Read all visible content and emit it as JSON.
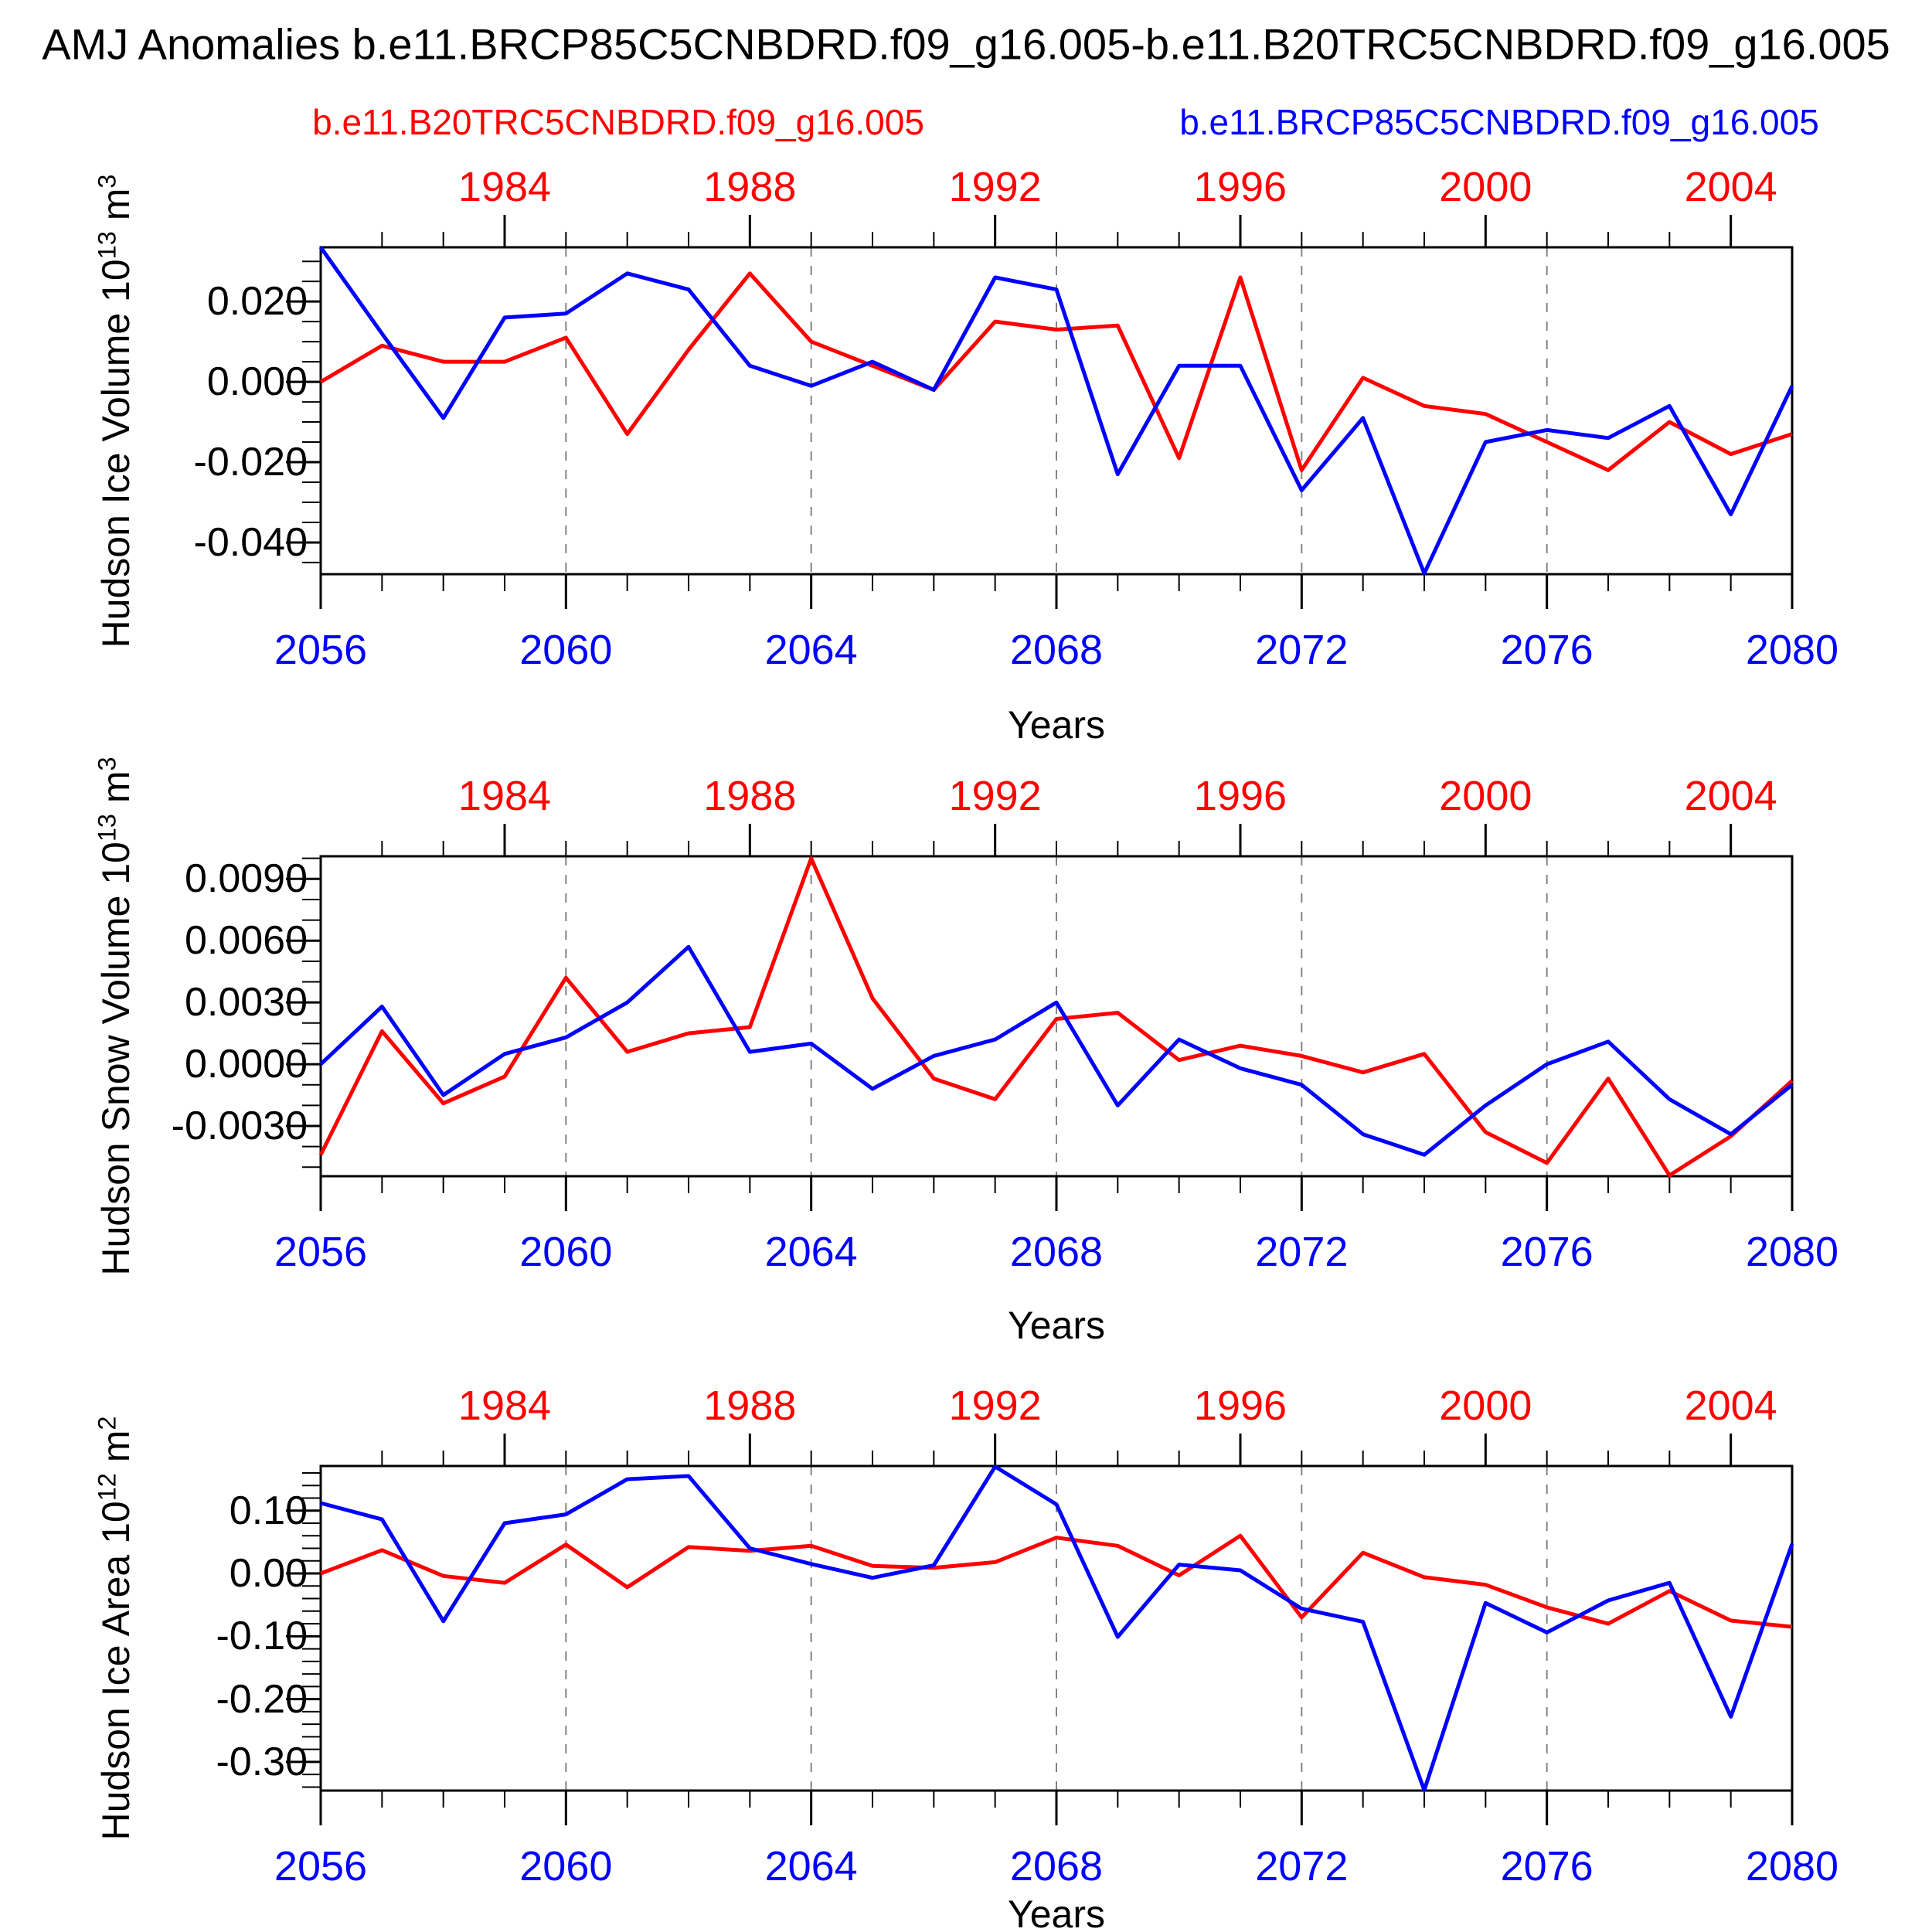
{
  "title": "AMJ Anomalies b.e11.BRCP85C5CNBDRD.f09_g16.005-b.e11.B20TRC5CNBDRD.f09_g16.005",
  "legend": {
    "red_label": "b.e11.B20TRC5CNBDRD.f09_g16.005",
    "blue_label": "b.e11.BRCP85C5CNBDRD.f09_g16.005"
  },
  "colors": {
    "red": "#ff0000",
    "blue": "#0000ff",
    "grid": "#848484",
    "axis": "#000000"
  },
  "xlabel": "Years",
  "years": [
    2056,
    2057,
    2058,
    2059,
    2060,
    2061,
    2062,
    2063,
    2064,
    2065,
    2066,
    2067,
    2068,
    2069,
    2070,
    2071,
    2072,
    2073,
    2074,
    2075,
    2076,
    2077,
    2078,
    2079,
    2080
  ],
  "top_axis": {
    "labels": [
      "1984",
      "1988",
      "1992",
      "1996",
      "2000",
      "2004"
    ],
    "at_years": [
      2059,
      2063,
      2067,
      2071,
      2075,
      2079
    ]
  },
  "bottom_axis_labels": [
    "2056",
    "2060",
    "2064",
    "2068",
    "2072",
    "2076",
    "2080"
  ],
  "bottom_axis_at_years": [
    2056,
    2060,
    2064,
    2068,
    2072,
    2076,
    2080
  ],
  "grid_years": [
    2060,
    2064,
    2068,
    2072,
    2076
  ],
  "chart_data": [
    {
      "type": "line",
      "ylabel": "Hudson Ice Volume 10^13 m^3",
      "ylim": [
        -0.0479,
        0.0335
      ],
      "ytick_values": [
        0.02,
        0.0,
        -0.02,
        -0.04
      ],
      "ytick_labels": [
        "0.020",
        "0.000",
        "-0.020",
        "-0.040"
      ],
      "yminor_step": 0.005,
      "series": [
        {
          "name": "b.e11.B20TRC5CNBDRD.f09_g16.005",
          "color": "red",
          "values": [
            0.0,
            0.009,
            0.005,
            0.005,
            0.011,
            -0.013,
            0.008,
            0.027,
            0.01,
            0.004,
            -0.002,
            0.015,
            0.013,
            0.014,
            -0.019,
            0.026,
            -0.022,
            0.001,
            -0.006,
            -0.008,
            -0.015,
            -0.022,
            -0.01,
            -0.018,
            -0.013
          ]
        },
        {
          "name": "b.e11.BRCP85C5CNBDRD.f09_g16.005",
          "color": "blue",
          "values": [
            0.0335,
            0.012,
            -0.009,
            0.016,
            0.017,
            0.027,
            0.023,
            0.004,
            -0.001,
            0.005,
            -0.002,
            0.026,
            0.023,
            -0.023,
            0.004,
            0.004,
            -0.027,
            -0.009,
            -0.0477,
            -0.015,
            -0.012,
            -0.014,
            -0.006,
            -0.033,
            -0.001
          ]
        }
      ]
    },
    {
      "type": "line",
      "ylabel": "Hudson Snow Volume 10^13 m^3",
      "ylim": [
        -0.00544,
        0.0101
      ],
      "ytick_values": [
        0.009,
        0.006,
        0.003,
        0.0,
        -0.003
      ],
      "ytick_labels": [
        "0.0090",
        "0.0060",
        "0.0030",
        "0.0000",
        "-0.0030"
      ],
      "yminor_step": 0.001,
      "series": [
        {
          "name": "b.e11.B20TRC5CNBDRD.f09_g16.005",
          "color": "red",
          "values": [
            -0.0044,
            0.0016,
            -0.0019,
            -0.0006,
            0.0042,
            0.0006,
            0.0015,
            0.0018,
            0.01,
            0.0032,
            -0.0007,
            -0.0017,
            0.0022,
            0.0025,
            0.0002,
            0.0009,
            0.0004,
            -0.0004,
            0.0005,
            -0.0033,
            -0.0048,
            -0.0007,
            -0.0054,
            -0.0035,
            -0.0008
          ]
        },
        {
          "name": "b.e11.BRCP85C5CNBDRD.f09_g16.005",
          "color": "blue",
          "values": [
            0.0,
            0.0028,
            -0.0015,
            0.0005,
            0.0013,
            0.003,
            0.0057,
            0.0006,
            0.001,
            -0.0012,
            0.0004,
            0.0012,
            0.003,
            -0.002,
            0.0012,
            -0.0002,
            -0.001,
            -0.0034,
            -0.0044,
            -0.002,
            0.0,
            0.0011,
            -0.0017,
            -0.0034,
            -0.001
          ]
        }
      ]
    },
    {
      "type": "line",
      "ylabel": "Hudson Ice Area 10^12 m^2",
      "ylim": [
        -0.3456,
        0.171
      ],
      "ytick_values": [
        0.1,
        0.0,
        -0.1,
        -0.2,
        -0.3
      ],
      "ytick_labels": [
        "0.10",
        "0.00",
        "-0.10",
        "-0.20",
        "-0.30"
      ],
      "yminor_step": 0.02,
      "series": [
        {
          "name": "b.e11.B20TRC5CNBDRD.f09_g16.005",
          "color": "red",
          "values": [
            0.0,
            0.037,
            -0.004,
            -0.015,
            0.046,
            -0.022,
            0.042,
            0.036,
            0.044,
            0.012,
            0.009,
            0.018,
            0.057,
            0.044,
            -0.003,
            0.06,
            -0.07,
            0.033,
            -0.006,
            -0.018,
            -0.054,
            -0.08,
            -0.028,
            -0.075,
            -0.085
          ]
        },
        {
          "name": "b.e11.BRCP85C5CNBDRD.f09_g16.005",
          "color": "blue",
          "values": [
            0.112,
            0.086,
            -0.076,
            0.08,
            0.094,
            0.15,
            0.155,
            0.04,
            0.015,
            -0.007,
            0.013,
            0.17,
            0.11,
            -0.101,
            0.014,
            0.005,
            -0.056,
            -0.077,
            -0.345,
            -0.047,
            -0.094,
            -0.043,
            -0.015,
            -0.228,
            0.047
          ]
        }
      ]
    }
  ]
}
